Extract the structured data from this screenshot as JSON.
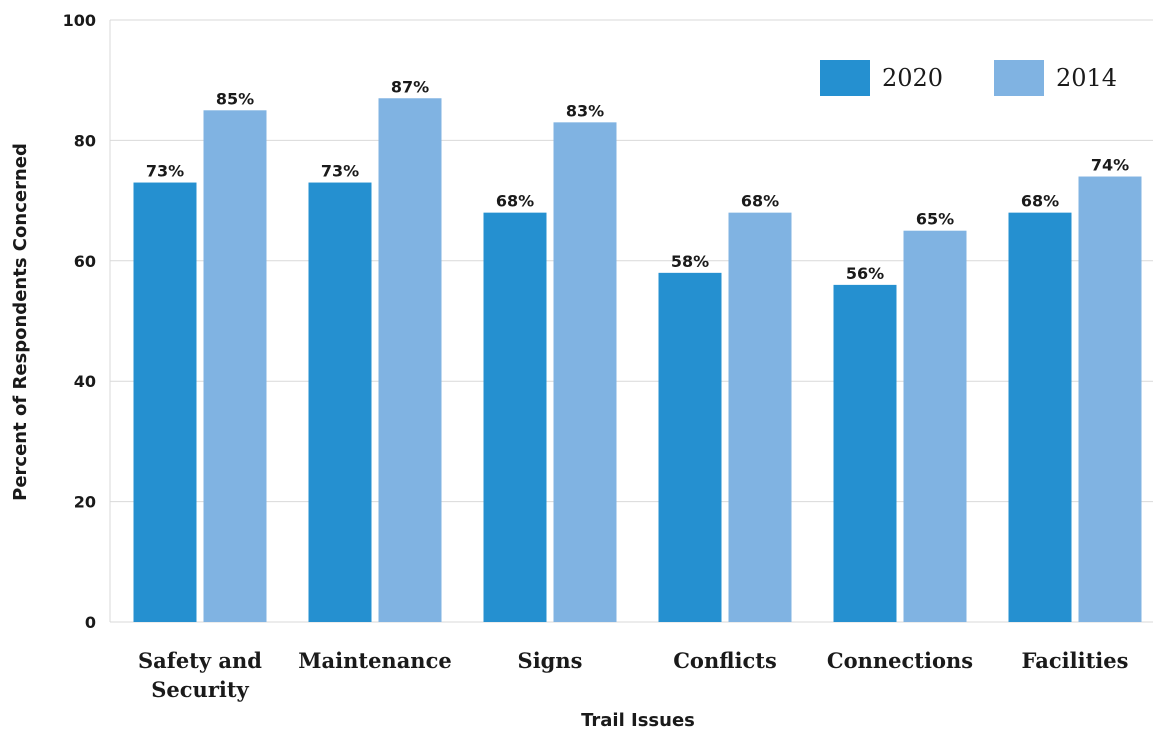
{
  "chart_data": {
    "type": "bar",
    "categories": [
      [
        "Safety and",
        "Security"
      ],
      [
        "Maintenance"
      ],
      [
        "Signs"
      ],
      [
        "Conflicts"
      ],
      [
        "Connections"
      ],
      [
        "Facilities"
      ]
    ],
    "series": [
      {
        "name": "2020",
        "color": "#2590d0",
        "values": [
          73,
          73,
          68,
          58,
          56,
          68
        ],
        "labels": [
          "73%",
          "73%",
          "68%",
          "58%",
          "56%",
          "68%"
        ]
      },
      {
        "name": "2014",
        "color": "#80b3e2",
        "values": [
          85,
          87,
          83,
          68,
          65,
          74
        ],
        "labels": [
          "85%",
          "87%",
          "83%",
          "68%",
          "65%",
          "74%"
        ]
      }
    ],
    "xlabel": "Trail Issues",
    "ylabel": "Percent of Respondents Concerned",
    "ylim": [
      0,
      100
    ],
    "yticks": [
      "0",
      "20",
      "40",
      "60",
      "80",
      "100"
    ],
    "ytick_values": [
      0,
      20,
      40,
      60,
      80,
      100
    ],
    "grid": true,
    "legend_position": "top-right"
  }
}
